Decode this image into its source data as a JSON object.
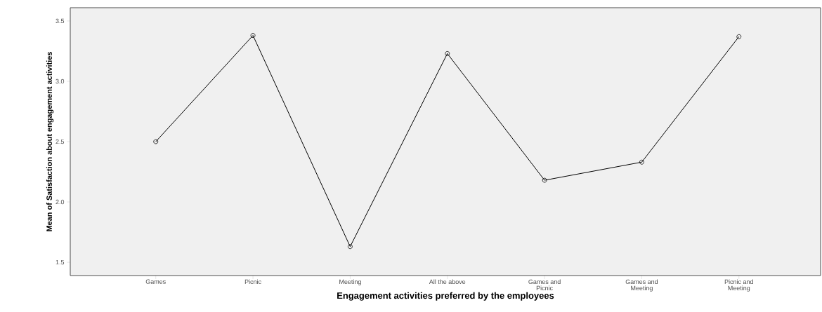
{
  "chart_data": {
    "type": "line",
    "xlabel": "Engagement activities preferred by the employees",
    "ylabel": "Mean of Satisfaction about engagement activities",
    "categories": [
      "Games",
      "Picnic",
      "Meeting",
      "All the above",
      "Games and Picnic",
      "Games and Meeting",
      "Picnic and Meeting"
    ],
    "values": [
      2.5,
      3.38,
      1.63,
      3.23,
      2.18,
      2.33,
      3.37
    ],
    "color": "#000000",
    "ylim": [
      1.39,
      3.61
    ],
    "yticks": [
      {
        "value": 1.5,
        "label": "1.5"
      },
      {
        "value": 2.0,
        "label": "2.0"
      },
      {
        "value": 2.5,
        "label": "2.5"
      },
      {
        "value": 3.0,
        "label": "3.0"
      },
      {
        "value": 3.5,
        "label": "3.5"
      }
    ],
    "marker": "circle",
    "line_style": "solid",
    "grid": false
  }
}
